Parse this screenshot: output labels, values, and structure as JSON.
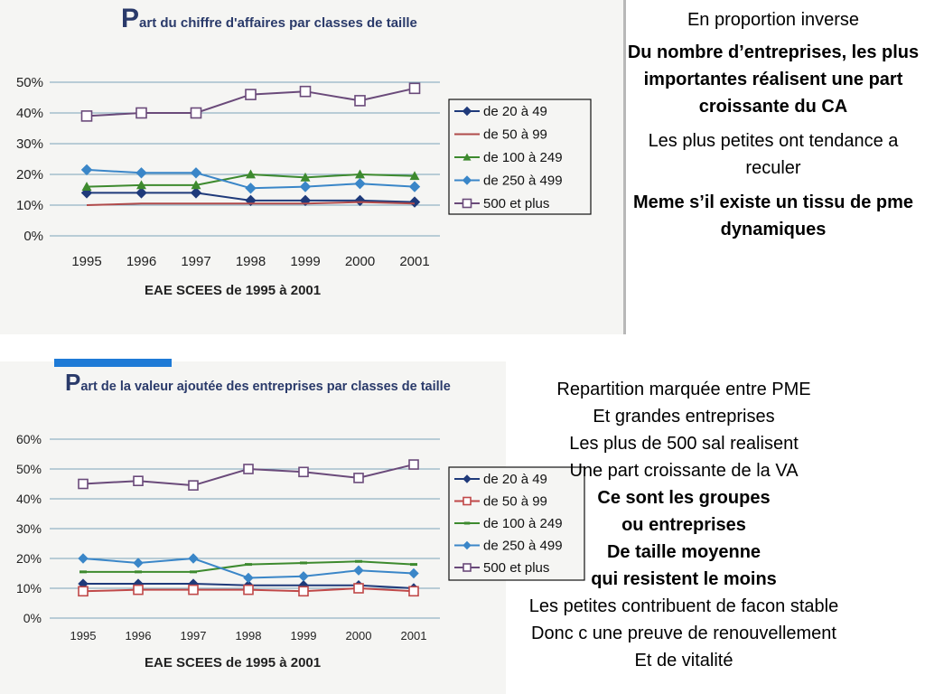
{
  "right_text": {
    "l1": "En proportion inverse",
    "b1": "Du nombre d’entreprises, les plus importantes réalisent une part croissante du CA",
    "l2": "Les plus petites ont tendance a reculer",
    "b2": "Meme s’il existe un tissu de pme dynamiques"
  },
  "bottom_text": {
    "l1": "Repartition marquée entre PME",
    "l2": "Et grandes entreprises",
    "l3": "Les plus de 500 sal realisent",
    "l4": "Une part croissante de la VA",
    "b1": "Ce sont les groupes",
    "b2": "ou entreprises",
    "b3": "De taille moyenne",
    "b4": "qui resistent le moins",
    "l5": "Les petites contribuent de facon stable",
    "l6": "Donc c une preuve de renouvellement",
    "l7": "Et de vitalité"
  },
  "chart_data": [
    {
      "type": "line",
      "title_initial": "P",
      "title_rest": "art du chiffre d'affaires par classes de taille",
      "subtitle": "EAE SCEES de 1995 à 2001",
      "categories": [
        "1995",
        "1996",
        "1997",
        "1998",
        "1999",
        "2000",
        "2001"
      ],
      "y_ticks": [
        "0%",
        "10%",
        "20%",
        "30%",
        "40%",
        "50%"
      ],
      "ylim": [
        0,
        50
      ],
      "legend_position": "right",
      "series": [
        {
          "name": "de 20 à 49",
          "color": "#1f3a7a",
          "marker": "diamond",
          "values": [
            14,
            14,
            14,
            11.5,
            11.5,
            11.5,
            11
          ]
        },
        {
          "name": "de 50 à 99",
          "color": "#b04a4a",
          "marker": "none",
          "values": [
            10,
            10.5,
            10.5,
            10.5,
            10.5,
            11,
            10.5
          ]
        },
        {
          "name": "de 100 à 249",
          "color": "#3d8a2e",
          "marker": "triangle",
          "values": [
            16,
            16.5,
            16.5,
            20,
            19,
            20,
            19.5
          ]
        },
        {
          "name": "de 250 à 499",
          "color": "#3a86c8",
          "marker": "diamond",
          "values": [
            21.5,
            20.5,
            20.5,
            15.5,
            16,
            17,
            16
          ]
        },
        {
          "name": "500 et plus",
          "color": "#6a4a7a",
          "marker": "square",
          "values": [
            39,
            40,
            40,
            46,
            47,
            44,
            48
          ]
        }
      ]
    },
    {
      "type": "line",
      "title_initial": "P",
      "title_rest": "art de la valeur ajoutée des entreprises par classes de taille",
      "subtitle": "EAE SCEES de 1995 à 2001",
      "categories": [
        "1995",
        "1996",
        "1997",
        "1998",
        "1999",
        "2000",
        "2001"
      ],
      "y_ticks": [
        "0%",
        "10%",
        "20%",
        "30%",
        "40%",
        "50%",
        "60%"
      ],
      "ylim": [
        0,
        60
      ],
      "legend_position": "right",
      "series": [
        {
          "name": "de 20 à 49",
          "color": "#1f3a7a",
          "marker": "diamond",
          "values": [
            11.5,
            11.5,
            11.5,
            11,
            11,
            11,
            10
          ]
        },
        {
          "name": "de 50 à 99",
          "color": "#c04848",
          "marker": "square",
          "values": [
            9,
            9.5,
            9.5,
            9.5,
            9,
            10,
            9
          ]
        },
        {
          "name": "de 100 à 249",
          "color": "#3d8a2e",
          "marker": "dash",
          "values": [
            15.5,
            15.5,
            15.5,
            18,
            18.5,
            19,
            18
          ]
        },
        {
          "name": "de 250 à 499",
          "color": "#3a86c8",
          "marker": "diamond",
          "values": [
            20,
            18.5,
            20,
            13.5,
            14,
            16,
            15
          ]
        },
        {
          "name": "500 et plus",
          "color": "#6a4a7a",
          "marker": "square",
          "values": [
            45,
            46,
            44.5,
            50,
            49,
            47,
            51.5
          ]
        }
      ]
    }
  ]
}
